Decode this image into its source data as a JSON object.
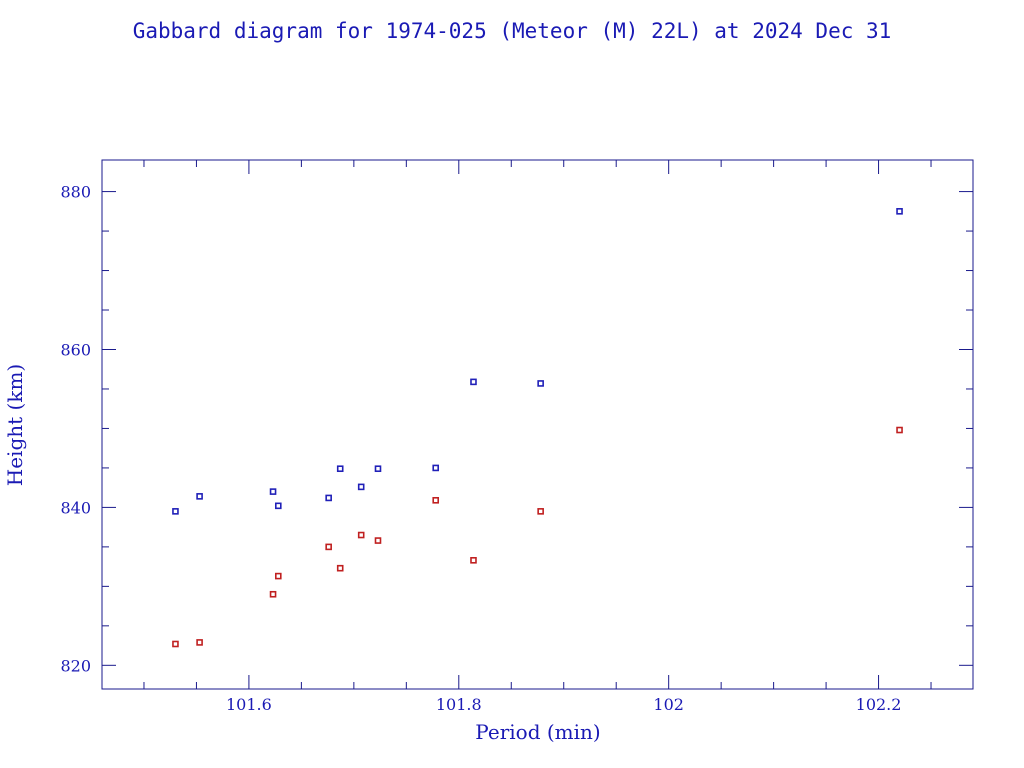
{
  "chart_data": {
    "type": "scatter",
    "title": "Gabbard diagram for 1974-025 (Meteor (M) 22L) at 2024 Dec 31",
    "xlabel": "Period (min)",
    "ylabel": "Height (km)",
    "xlim": [
      101.46,
      102.29
    ],
    "ylim": [
      817,
      884
    ],
    "x_ticks": [
      101.6,
      101.8,
      102,
      102.2
    ],
    "x_tick_labels": [
      "101.6",
      "101.8",
      "102",
      "102.2"
    ],
    "y_ticks": [
      820,
      840,
      860,
      880
    ],
    "y_tick_labels": [
      "820",
      "840",
      "860",
      "880"
    ],
    "grid": false,
    "legend": "none",
    "colors": {
      "series_1": "#2020b8",
      "series_2": "#c02020",
      "axes": "#1a1a8c",
      "text": "#1a1ab4"
    },
    "series": [
      {
        "points": [
          [
            101.53,
            839.5
          ],
          [
            101.553,
            841.4
          ],
          [
            101.623,
            842.0
          ],
          [
            101.628,
            840.2
          ],
          [
            101.676,
            841.2
          ],
          [
            101.687,
            844.9
          ],
          [
            101.707,
            842.6
          ],
          [
            101.723,
            844.9
          ],
          [
            101.778,
            845.0
          ],
          [
            101.814,
            855.9
          ],
          [
            101.878,
            855.7
          ],
          [
            102.22,
            877.5
          ]
        ]
      },
      {
        "points": [
          [
            101.53,
            822.7
          ],
          [
            101.553,
            822.9
          ],
          [
            101.623,
            829.0
          ],
          [
            101.628,
            831.3
          ],
          [
            101.676,
            835.0
          ],
          [
            101.687,
            832.3
          ],
          [
            101.707,
            836.5
          ],
          [
            101.723,
            835.8
          ],
          [
            101.778,
            840.9
          ],
          [
            101.814,
            833.3
          ],
          [
            101.878,
            839.5
          ],
          [
            102.22,
            849.8
          ]
        ]
      }
    ]
  }
}
